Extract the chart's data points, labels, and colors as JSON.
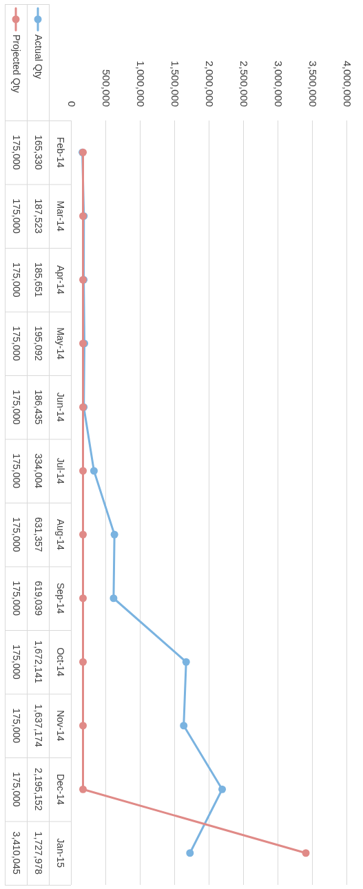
{
  "chart_data": {
    "type": "line",
    "categories": [
      "Feb-14",
      "Mar-14",
      "Apr-14",
      "May-14",
      "Jun-14",
      "Jul-14",
      "Aug-14",
      "Sep-14",
      "Oct-14",
      "Nov-14",
      "Dec-14",
      "Jan-15"
    ],
    "series": [
      {
        "name": "Actual Qty",
        "color": "#7ab3e0",
        "values": [
          165330,
          187523,
          185651,
          195092,
          186435,
          334004,
          631357,
          619039,
          1672141,
          1637174,
          2195152,
          1727978
        ],
        "value_labels": [
          "165,330",
          "187,523",
          "185,651",
          "195,092",
          "186,435",
          "334,004",
          "631,357",
          "619,039",
          "1,672,141",
          "1,637,174",
          "2,195,152",
          "1,727,978"
        ]
      },
      {
        "name": "Projected Qty",
        "color": "#e08a87",
        "values": [
          175000,
          175000,
          175000,
          175000,
          175000,
          175000,
          175000,
          175000,
          175000,
          175000,
          175000,
          3410045
        ],
        "value_labels": [
          "175,000",
          "175,000",
          "175,000",
          "175,000",
          "175,000",
          "175,000",
          "175,000",
          "175,000",
          "175,000",
          "175,000",
          "175,000",
          "3,410,045"
        ]
      }
    ],
    "orientation": "horizontal",
    "xlim": [
      0,
      4000000
    ],
    "xticks": [
      0,
      {
        "value": 500000,
        "label": "500,000"
      },
      {
        "value": 1000000,
        "label": "1,000,000"
      },
      {
        "value": 1500000,
        "label": "1,500,000"
      },
      {
        "value": 2000000,
        "label": "2,000,000"
      },
      {
        "value": 2500000,
        "label": "2,500,000"
      },
      {
        "value": 3000000,
        "label": "3,000,000"
      },
      {
        "value": 3500000,
        "label": "3,500,000"
      },
      {
        "value": 4000000,
        "label": "4,000,000"
      }
    ],
    "grid": "x",
    "legend": "left",
    "marker": "circle",
    "line_style": "solid"
  }
}
